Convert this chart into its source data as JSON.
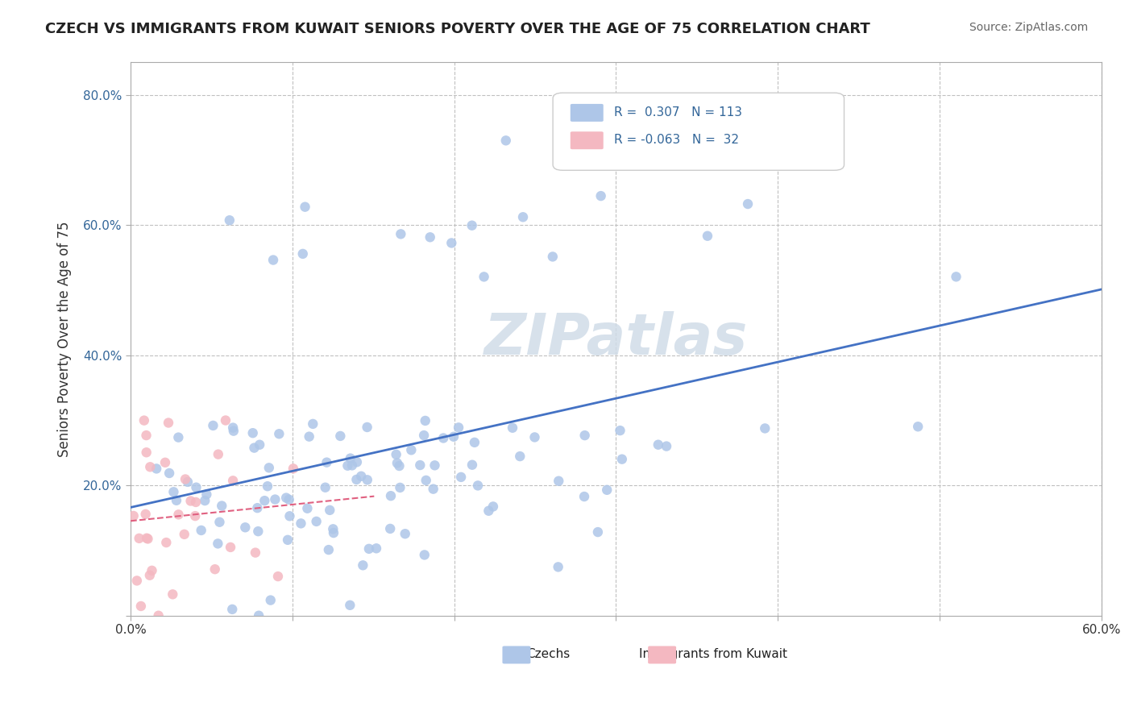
{
  "title": "CZECH VS IMMIGRANTS FROM KUWAIT SENIORS POVERTY OVER THE AGE OF 75 CORRELATION CHART",
  "source": "Source: ZipAtlas.com",
  "xlabel": "",
  "ylabel": "Seniors Poverty Over the Age of 75",
  "xlim": [
    0.0,
    0.6
  ],
  "ylim": [
    0.0,
    0.85
  ],
  "xticks": [
    0.0,
    0.1,
    0.2,
    0.3,
    0.4,
    0.5,
    0.6
  ],
  "yticks": [
    0.0,
    0.2,
    0.4,
    0.6,
    0.8
  ],
  "xtick_labels": [
    "0.0%",
    "",
    "",
    "",
    "",
    "",
    "60.0%"
  ],
  "ytick_labels": [
    "",
    "20.0%",
    "40.0%",
    "60.0%",
    "80.0%"
  ],
  "legend_entries": [
    {
      "label": "R =  0.307   N = 113",
      "color": "#aec6e8"
    },
    {
      "label": "R = -0.063   N =  32",
      "color": "#f4b8c1"
    }
  ],
  "czech_color": "#aec6e8",
  "kuwait_color": "#f4b8c1",
  "czech_R": 0.307,
  "czech_N": 113,
  "kuwait_R": -0.063,
  "kuwait_N": 32,
  "watermark": "ZIPatlas",
  "watermark_color": "#d0dce8",
  "background_color": "#ffffff",
  "grid_color": "#c0c0c0",
  "trend_blue": "#4472c4",
  "trend_pink": "#e06080",
  "czech_seed": 42,
  "kuwait_seed": 99
}
